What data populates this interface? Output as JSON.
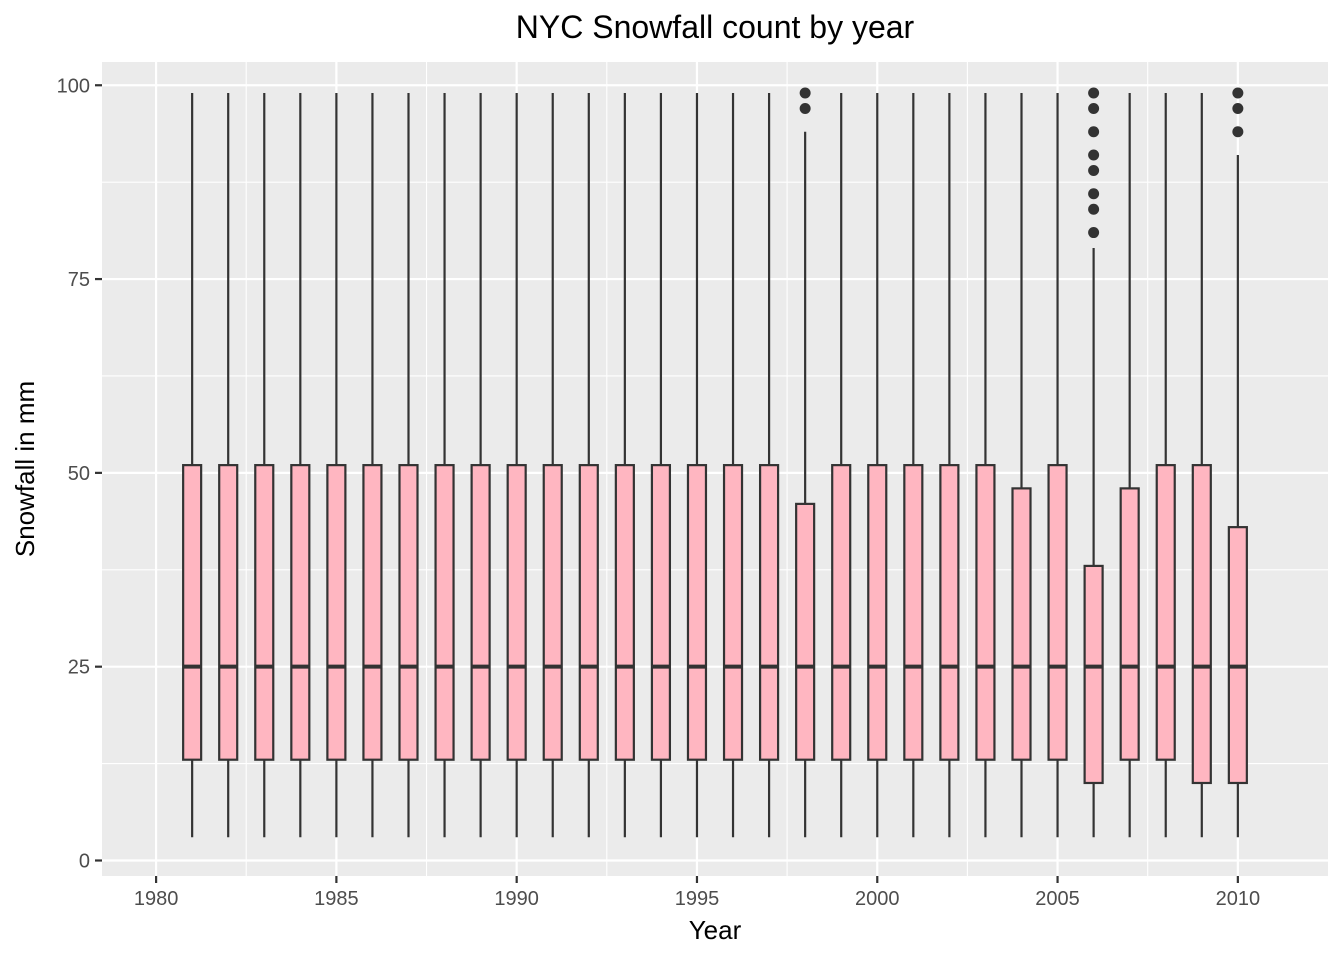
{
  "chart_data": {
    "type": "boxplot",
    "title": "NYC Snowfall count by year",
    "xlabel": "Year",
    "ylabel": "Snowfall in mm",
    "xlim": [
      1978.5,
      2012.5
    ],
    "ylim": [
      -2,
      103
    ],
    "x_ticks": [
      1980,
      1985,
      1990,
      1995,
      2000,
      2005,
      2010
    ],
    "y_ticks": [
      0,
      25,
      50,
      75,
      100
    ],
    "grid": true,
    "legend": "none",
    "colors": {
      "panel": "#EBEBEB",
      "grid": "#FFFFFF",
      "box_fill": "#FFB6C1",
      "box_line": "#333333",
      "outlier": "#333333"
    },
    "boxes": [
      {
        "year": 1981,
        "whisker_low": 3,
        "q1": 13,
        "median": 25,
        "q3": 51,
        "whisker_high": 99,
        "outliers": []
      },
      {
        "year": 1982,
        "whisker_low": 3,
        "q1": 13,
        "median": 25,
        "q3": 51,
        "whisker_high": 99,
        "outliers": []
      },
      {
        "year": 1983,
        "whisker_low": 3,
        "q1": 13,
        "median": 25,
        "q3": 51,
        "whisker_high": 99,
        "outliers": []
      },
      {
        "year": 1984,
        "whisker_low": 3,
        "q1": 13,
        "median": 25,
        "q3": 51,
        "whisker_high": 99,
        "outliers": []
      },
      {
        "year": 1985,
        "whisker_low": 3,
        "q1": 13,
        "median": 25,
        "q3": 51,
        "whisker_high": 99,
        "outliers": []
      },
      {
        "year": 1986,
        "whisker_low": 3,
        "q1": 13,
        "median": 25,
        "q3": 51,
        "whisker_high": 99,
        "outliers": []
      },
      {
        "year": 1987,
        "whisker_low": 3,
        "q1": 13,
        "median": 25,
        "q3": 51,
        "whisker_high": 99,
        "outliers": []
      },
      {
        "year": 1988,
        "whisker_low": 3,
        "q1": 13,
        "median": 25,
        "q3": 51,
        "whisker_high": 99,
        "outliers": []
      },
      {
        "year": 1989,
        "whisker_low": 3,
        "q1": 13,
        "median": 25,
        "q3": 51,
        "whisker_high": 99,
        "outliers": []
      },
      {
        "year": 1990,
        "whisker_low": 3,
        "q1": 13,
        "median": 25,
        "q3": 51,
        "whisker_high": 99,
        "outliers": []
      },
      {
        "year": 1991,
        "whisker_low": 3,
        "q1": 13,
        "median": 25,
        "q3": 51,
        "whisker_high": 99,
        "outliers": []
      },
      {
        "year": 1992,
        "whisker_low": 3,
        "q1": 13,
        "median": 25,
        "q3": 51,
        "whisker_high": 99,
        "outliers": []
      },
      {
        "year": 1993,
        "whisker_low": 3,
        "q1": 13,
        "median": 25,
        "q3": 51,
        "whisker_high": 99,
        "outliers": []
      },
      {
        "year": 1994,
        "whisker_low": 3,
        "q1": 13,
        "median": 25,
        "q3": 51,
        "whisker_high": 99,
        "outliers": []
      },
      {
        "year": 1995,
        "whisker_low": 3,
        "q1": 13,
        "median": 25,
        "q3": 51,
        "whisker_high": 99,
        "outliers": []
      },
      {
        "year": 1996,
        "whisker_low": 3,
        "q1": 13,
        "median": 25,
        "q3": 51,
        "whisker_high": 99,
        "outliers": []
      },
      {
        "year": 1997,
        "whisker_low": 3,
        "q1": 13,
        "median": 25,
        "q3": 51,
        "whisker_high": 99,
        "outliers": []
      },
      {
        "year": 1998,
        "whisker_low": 3,
        "q1": 13,
        "median": 25,
        "q3": 46,
        "whisker_high": 94,
        "outliers": [
          97,
          99
        ]
      },
      {
        "year": 1999,
        "whisker_low": 3,
        "q1": 13,
        "median": 25,
        "q3": 51,
        "whisker_high": 99,
        "outliers": []
      },
      {
        "year": 2000,
        "whisker_low": 3,
        "q1": 13,
        "median": 25,
        "q3": 51,
        "whisker_high": 99,
        "outliers": []
      },
      {
        "year": 2001,
        "whisker_low": 3,
        "q1": 13,
        "median": 25,
        "q3": 51,
        "whisker_high": 99,
        "outliers": []
      },
      {
        "year": 2002,
        "whisker_low": 3,
        "q1": 13,
        "median": 25,
        "q3": 51,
        "whisker_high": 99,
        "outliers": []
      },
      {
        "year": 2003,
        "whisker_low": 3,
        "q1": 13,
        "median": 25,
        "q3": 51,
        "whisker_high": 99,
        "outliers": []
      },
      {
        "year": 2004,
        "whisker_low": 3,
        "q1": 13,
        "median": 25,
        "q3": 48,
        "whisker_high": 99,
        "outliers": []
      },
      {
        "year": 2005,
        "whisker_low": 3,
        "q1": 13,
        "median": 25,
        "q3": 51,
        "whisker_high": 99,
        "outliers": []
      },
      {
        "year": 2006,
        "whisker_low": 3,
        "q1": 10,
        "median": 25,
        "q3": 38,
        "whisker_high": 79,
        "outliers": [
          81,
          84,
          86,
          89,
          91,
          94,
          97,
          99
        ]
      },
      {
        "year": 2007,
        "whisker_low": 3,
        "q1": 13,
        "median": 25,
        "q3": 48,
        "whisker_high": 99,
        "outliers": []
      },
      {
        "year": 2008,
        "whisker_low": 3,
        "q1": 13,
        "median": 25,
        "q3": 51,
        "whisker_high": 99,
        "outliers": []
      },
      {
        "year": 2009,
        "whisker_low": 3,
        "q1": 10,
        "median": 25,
        "q3": 51,
        "whisker_high": 99,
        "outliers": []
      },
      {
        "year": 2010,
        "whisker_low": 3,
        "q1": 10,
        "median": 25,
        "q3": 43,
        "whisker_high": 91,
        "outliers": [
          94,
          97,
          99
        ]
      }
    ]
  }
}
